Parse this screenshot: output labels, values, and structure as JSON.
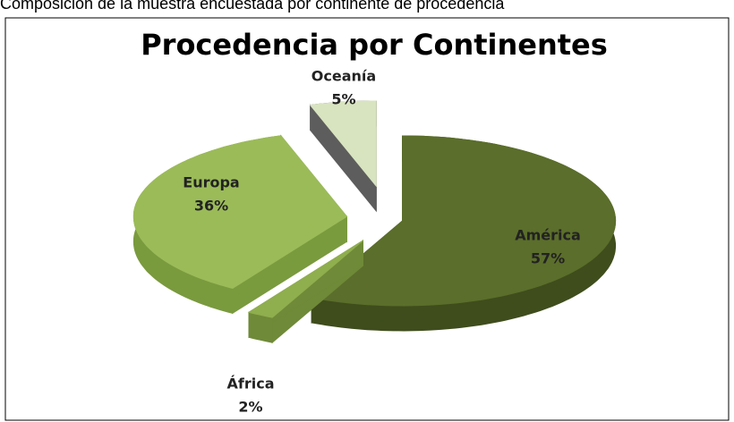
{
  "caption": "Composición de la muestra encuestada por continente de procedencia",
  "chart_data": {
    "type": "pie3d",
    "title": "Procedencia por Continentes",
    "categories": [
      "América",
      "África",
      "Europa",
      "Oceanía"
    ],
    "values": [
      57,
      2,
      36,
      5
    ],
    "value_labels": [
      "57%",
      "2%",
      "36%",
      "5%"
    ],
    "colors": [
      "#5b6e2b",
      "#8fae4e",
      "#9bbb59",
      "#d8e4c0"
    ],
    "side_colors": [
      "#3f4d1d",
      "#6f8a38",
      "#7a9a3e",
      "#5d5d5d"
    ]
  }
}
